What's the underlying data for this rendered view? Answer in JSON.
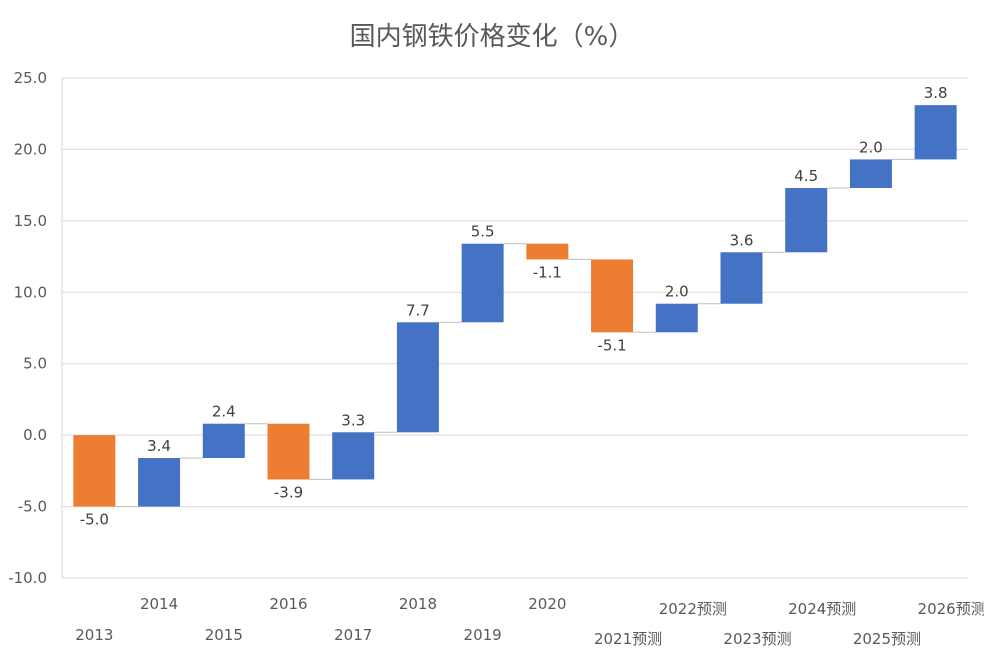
{
  "chart_data": {
    "type": "bar",
    "subtype": "waterfall",
    "title": "国内钢铁价格变化（%）",
    "xlabel": "",
    "ylabel": "",
    "ylim": [
      -10,
      25
    ],
    "yticks": [
      "25.0",
      "20.0",
      "15.0",
      "10.0",
      "5.0",
      "0.0",
      "-5.0",
      "-10.0"
    ],
    "grid": true,
    "legend": "none",
    "colors": {
      "increase": "#4472c4",
      "decrease": "#ed7d31"
    },
    "categories": [
      "2013",
      "2014",
      "2015",
      "2016",
      "2017",
      "2018",
      "2019",
      "2020",
      "2021预测",
      "2022预测",
      "2023预测",
      "2024预测",
      "2025预测",
      "2026预测"
    ],
    "values": [
      -5.0,
      3.4,
      2.4,
      -3.9,
      3.3,
      7.7,
      5.5,
      -1.1,
      -5.1,
      2.0,
      3.6,
      4.5,
      2.0,
      3.8
    ],
    "labels": [
      "-5.0",
      "3.4",
      "2.4",
      "-3.9",
      "3.3",
      "7.7",
      "5.5",
      "-1.1",
      "-5.1",
      "2.0",
      "3.6",
      "4.5",
      "2.0",
      "3.8"
    ]
  }
}
